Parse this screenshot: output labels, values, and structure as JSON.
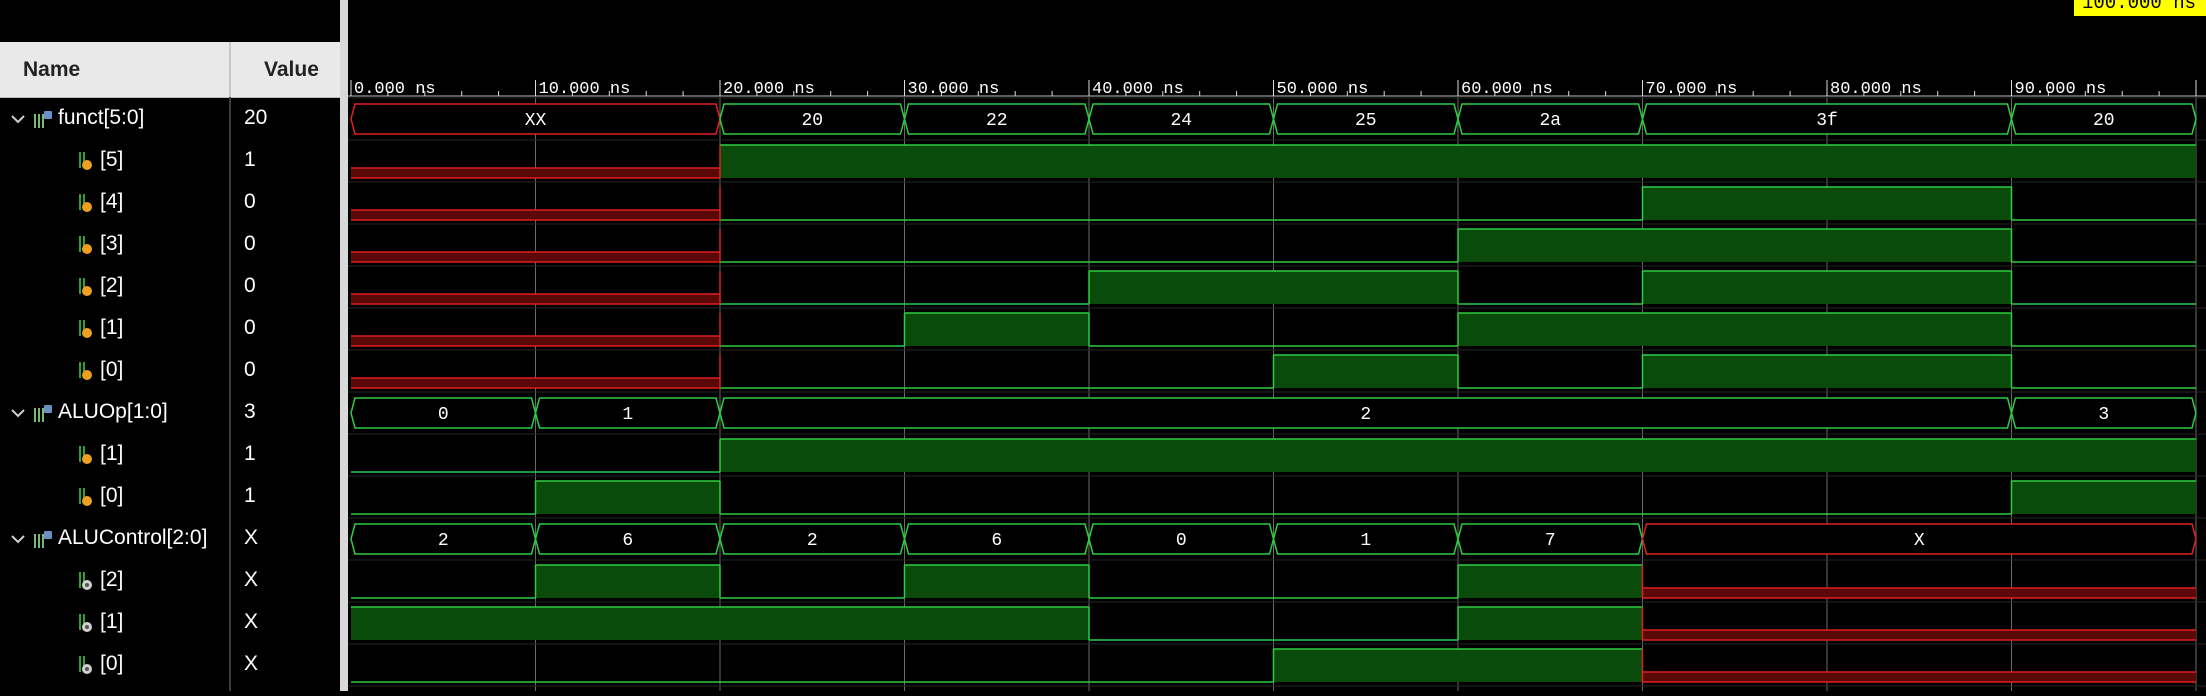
{
  "header": {
    "name_label": "Name",
    "value_label": "Value"
  },
  "cursor_label": "100.000 ns",
  "time_ticks": [
    "0.000 ns",
    "10.000 ns",
    "20.000 ns",
    "30.000 ns",
    "40.000 ns",
    "50.000 ns",
    "60.000 ns",
    "70.000 ns",
    "80.000 ns",
    "90.000 ns"
  ],
  "signals": [
    {
      "name": "funct[5:0]",
      "value": "20",
      "kind": "bus",
      "input": true,
      "segs": [
        {
          "t0": 0,
          "t1": 20,
          "label": "XX",
          "x": true
        },
        {
          "t0": 20,
          "t1": 30,
          "label": "20"
        },
        {
          "t0": 30,
          "t1": 40,
          "label": "22"
        },
        {
          "t0": 40,
          "t1": 50,
          "label": "24"
        },
        {
          "t0": 50,
          "t1": 60,
          "label": "25"
        },
        {
          "t0": 60,
          "t1": 70,
          "label": "2a"
        },
        {
          "t0": 70,
          "t1": 90,
          "label": "3f"
        },
        {
          "t0": 90,
          "t1": 100,
          "label": "20"
        }
      ]
    },
    {
      "name": "[5]",
      "value": "1",
      "kind": "bit",
      "input": true,
      "segs": [
        {
          "t0": 0,
          "t1": 20,
          "v": "x"
        },
        {
          "t0": 20,
          "t1": 100,
          "v": 1
        }
      ]
    },
    {
      "name": "[4]",
      "value": "0",
      "kind": "bit",
      "input": true,
      "segs": [
        {
          "t0": 0,
          "t1": 20,
          "v": "x"
        },
        {
          "t0": 20,
          "t1": 70,
          "v": 0
        },
        {
          "t0": 70,
          "t1": 90,
          "v": 1
        },
        {
          "t0": 90,
          "t1": 100,
          "v": 0
        }
      ]
    },
    {
      "name": "[3]",
      "value": "0",
      "kind": "bit",
      "input": true,
      "segs": [
        {
          "t0": 0,
          "t1": 20,
          "v": "x"
        },
        {
          "t0": 20,
          "t1": 60,
          "v": 0
        },
        {
          "t0": 60,
          "t1": 90,
          "v": 1
        },
        {
          "t0": 90,
          "t1": 100,
          "v": 0
        }
      ]
    },
    {
      "name": "[2]",
      "value": "0",
      "kind": "bit",
      "input": true,
      "segs": [
        {
          "t0": 0,
          "t1": 20,
          "v": "x"
        },
        {
          "t0": 20,
          "t1": 40,
          "v": 0
        },
        {
          "t0": 40,
          "t1": 60,
          "v": 1
        },
        {
          "t0": 60,
          "t1": 70,
          "v": 0
        },
        {
          "t0": 70,
          "t1": 90,
          "v": 1
        },
        {
          "t0": 90,
          "t1": 100,
          "v": 0
        }
      ]
    },
    {
      "name": "[1]",
      "value": "0",
      "kind": "bit",
      "input": true,
      "segs": [
        {
          "t0": 0,
          "t1": 20,
          "v": "x"
        },
        {
          "t0": 20,
          "t1": 30,
          "v": 0
        },
        {
          "t0": 30,
          "t1": 40,
          "v": 1
        },
        {
          "t0": 40,
          "t1": 60,
          "v": 0
        },
        {
          "t0": 60,
          "t1": 90,
          "v": 1
        },
        {
          "t0": 90,
          "t1": 100,
          "v": 0
        }
      ]
    },
    {
      "name": "[0]",
      "value": "0",
      "kind": "bit",
      "input": true,
      "segs": [
        {
          "t0": 0,
          "t1": 20,
          "v": "x"
        },
        {
          "t0": 20,
          "t1": 50,
          "v": 0
        },
        {
          "t0": 50,
          "t1": 60,
          "v": 1
        },
        {
          "t0": 60,
          "t1": 70,
          "v": 0
        },
        {
          "t0": 70,
          "t1": 90,
          "v": 1
        },
        {
          "t0": 90,
          "t1": 100,
          "v": 0
        }
      ]
    },
    {
      "name": "ALUOp[1:0]",
      "value": "3",
      "kind": "bus",
      "input": true,
      "segs": [
        {
          "t0": 0,
          "t1": 10,
          "label": "0"
        },
        {
          "t0": 10,
          "t1": 20,
          "label": "1"
        },
        {
          "t0": 20,
          "t1": 90,
          "label": "2"
        },
        {
          "t0": 90,
          "t1": 100,
          "label": "3"
        }
      ]
    },
    {
      "name": "[1]",
      "value": "1",
      "kind": "bit",
      "input": true,
      "segs": [
        {
          "t0": 0,
          "t1": 20,
          "v": 0
        },
        {
          "t0": 20,
          "t1": 100,
          "v": 1
        }
      ]
    },
    {
      "name": "[0]",
      "value": "1",
      "kind": "bit",
      "input": true,
      "segs": [
        {
          "t0": 0,
          "t1": 10,
          "v": 0
        },
        {
          "t0": 10,
          "t1": 20,
          "v": 1
        },
        {
          "t0": 20,
          "t1": 90,
          "v": 0
        },
        {
          "t0": 90,
          "t1": 100,
          "v": 1
        }
      ]
    },
    {
      "name": "ALUControl[2:0]",
      "value": "X",
      "kind": "bus",
      "input": false,
      "segs": [
        {
          "t0": 0,
          "t1": 10,
          "label": "2"
        },
        {
          "t0": 10,
          "t1": 20,
          "label": "6"
        },
        {
          "t0": 20,
          "t1": 30,
          "label": "2"
        },
        {
          "t0": 30,
          "t1": 40,
          "label": "6"
        },
        {
          "t0": 40,
          "t1": 50,
          "label": "0"
        },
        {
          "t0": 50,
          "t1": 60,
          "label": "1"
        },
        {
          "t0": 60,
          "t1": 70,
          "label": "7"
        },
        {
          "t0": 70,
          "t1": 100,
          "label": "X",
          "x": true
        }
      ]
    },
    {
      "name": "[2]",
      "value": "X",
      "kind": "bit",
      "input": false,
      "segs": [
        {
          "t0": 0,
          "t1": 10,
          "v": 0
        },
        {
          "t0": 10,
          "t1": 20,
          "v": 1
        },
        {
          "t0": 20,
          "t1": 30,
          "v": 0
        },
        {
          "t0": 30,
          "t1": 40,
          "v": 1
        },
        {
          "t0": 40,
          "t1": 60,
          "v": 0
        },
        {
          "t0": 60,
          "t1": 70,
          "v": 1
        },
        {
          "t0": 70,
          "t1": 100,
          "v": "x"
        }
      ]
    },
    {
      "name": "[1]",
      "value": "X",
      "kind": "bit",
      "input": false,
      "segs": [
        {
          "t0": 0,
          "t1": 40,
          "v": 1
        },
        {
          "t0": 40,
          "t1": 60,
          "v": 0
        },
        {
          "t0": 60,
          "t1": 70,
          "v": 1
        },
        {
          "t0": 70,
          "t1": 100,
          "v": "x"
        }
      ]
    },
    {
      "name": "[0]",
      "value": "X",
      "kind": "bit",
      "input": false,
      "segs": [
        {
          "t0": 0,
          "t1": 50,
          "v": 0
        },
        {
          "t0": 50,
          "t1": 70,
          "v": 1
        },
        {
          "t0": 70,
          "t1": 100,
          "v": "x"
        }
      ]
    }
  ]
}
